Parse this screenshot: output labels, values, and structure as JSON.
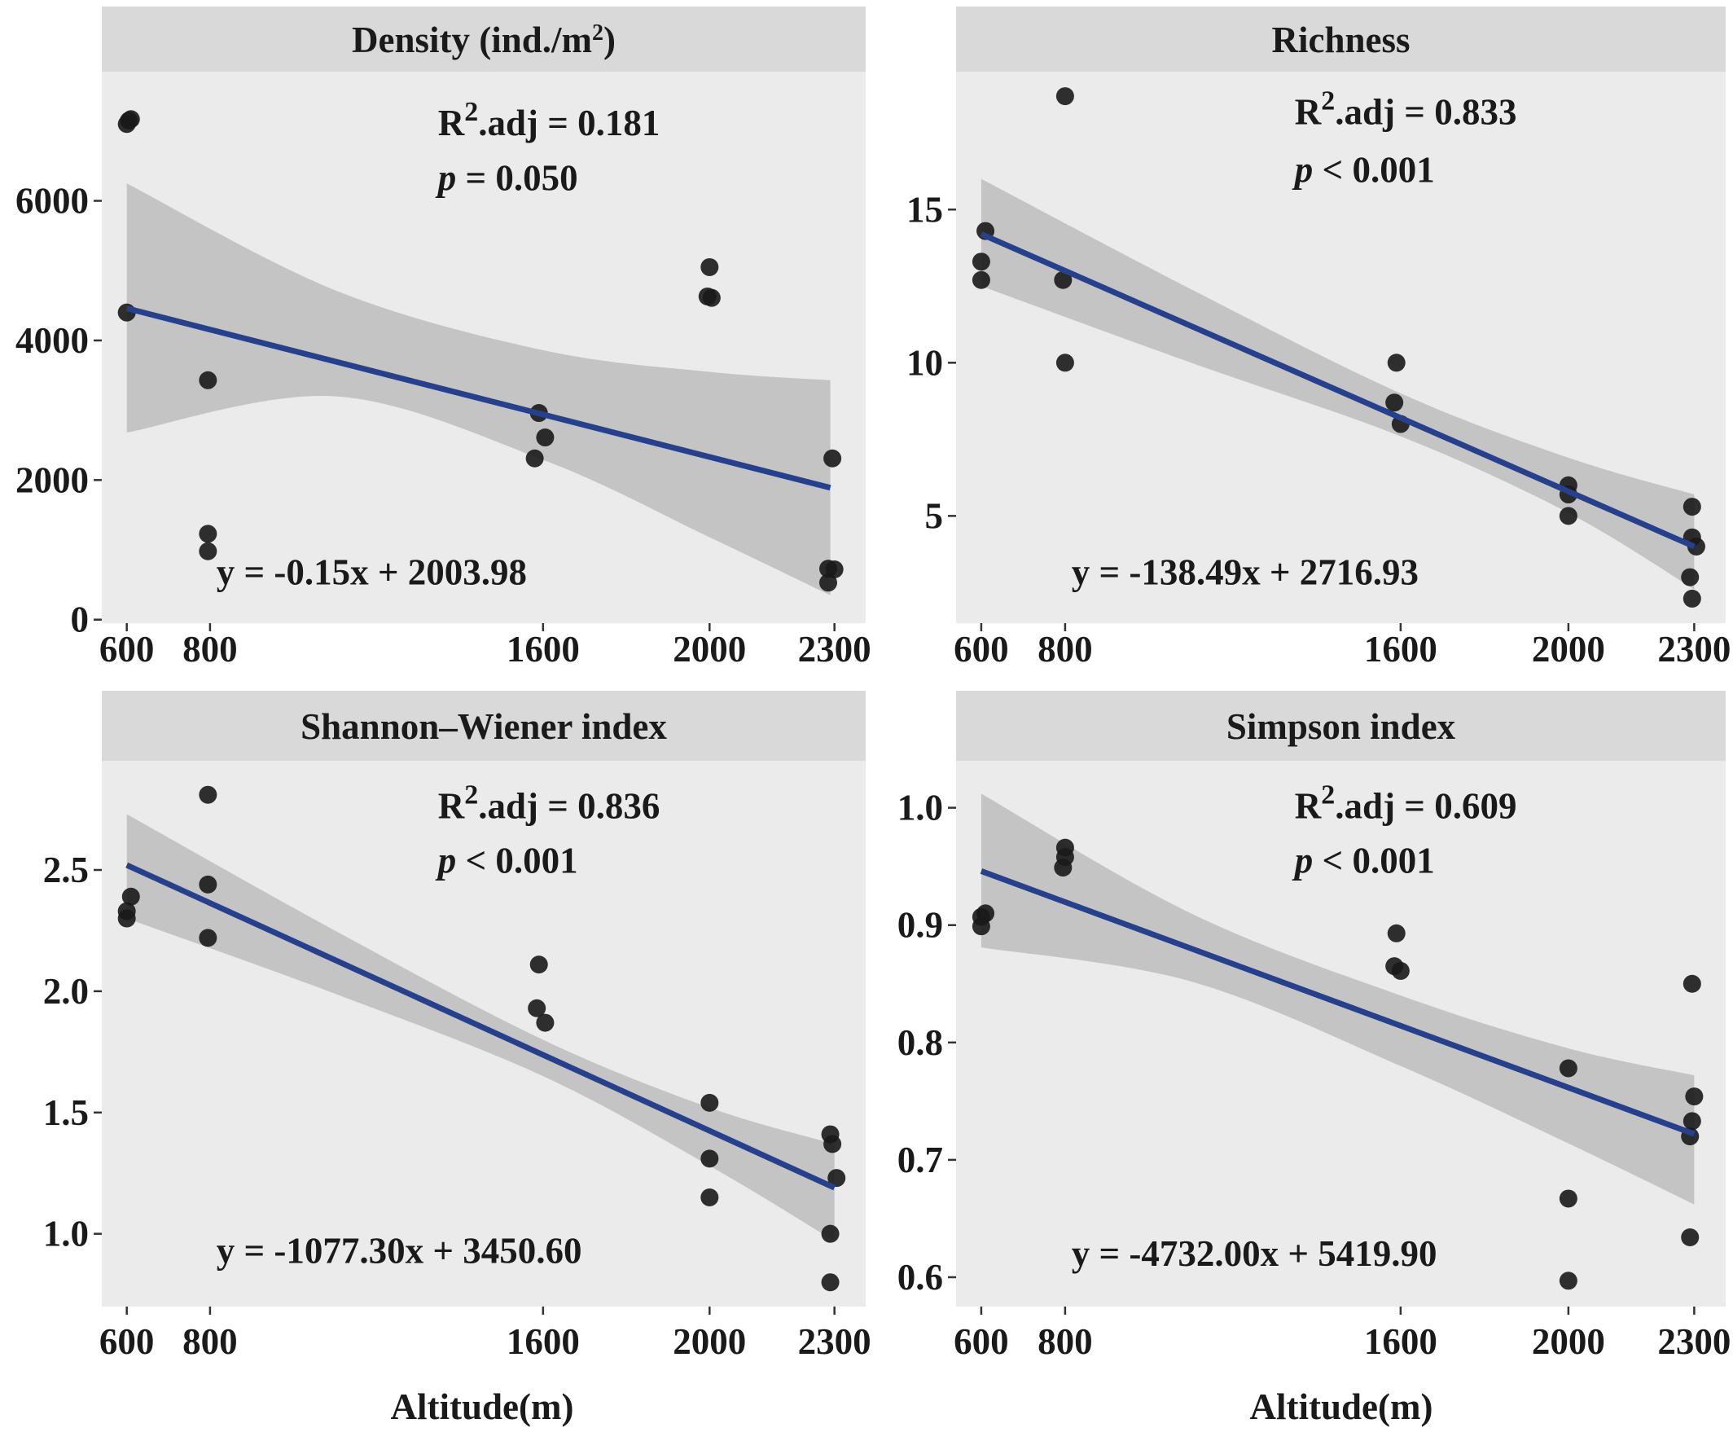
{
  "colors": {
    "panel_bg": "#ebebeb",
    "strip_bg": "#d9d9d9",
    "ribbon": "#bdbdbd",
    "fit_line": "#26408b",
    "points": "#1a1a1a",
    "axis": "#333333"
  },
  "figure": {
    "xlabel": "Altitude(m)"
  },
  "chart_data": [
    {
      "type": "scatter",
      "title_main": "Density  (ind./m",
      "title_sup": "2",
      "title_tail": ")",
      "xlabel": "Altitude(m)",
      "ylabel": "",
      "xlim": [
        540,
        2375
      ],
      "ylim": [
        -50,
        7850
      ],
      "x_ticks": [
        600,
        800,
        1600,
        2000,
        2300
      ],
      "y_ticks": [
        0,
        2000,
        4000,
        6000
      ],
      "y_tick_labels": [
        "0",
        "2000",
        "4000",
        "6000"
      ],
      "points": [
        {
          "x": 600,
          "y": 7100
        },
        {
          "x": 605,
          "y": 7150
        },
        {
          "x": 610,
          "y": 7170
        },
        {
          "x": 600,
          "y": 4400
        },
        {
          "x": 795,
          "y": 3430
        },
        {
          "x": 795,
          "y": 1230
        },
        {
          "x": 795,
          "y": 980
        },
        {
          "x": 1590,
          "y": 2960
        },
        {
          "x": 1580,
          "y": 2310
        },
        {
          "x": 1605,
          "y": 2610
        },
        {
          "x": 2000,
          "y": 5050
        },
        {
          "x": 1995,
          "y": 4630
        },
        {
          "x": 2005,
          "y": 4610
        },
        {
          "x": 2295,
          "y": 2310
        },
        {
          "x": 2285,
          "y": 730
        },
        {
          "x": 2300,
          "y": 720
        },
        {
          "x": 2285,
          "y": 530
        }
      ],
      "fit": {
        "x": [
          600,
          2290
        ],
        "y": [
          4460,
          1890
        ]
      },
      "ribbon": {
        "x": [
          600,
          1100,
          1600,
          2000,
          2290
        ],
        "upper": [
          6250,
          4720,
          3860,
          3550,
          3430
        ],
        "lower": [
          2680,
          3200,
          2290,
          1180,
          350
        ]
      },
      "r2_label": "R",
      "r2_sup": "2",
      "r2_value": ".adj = 0.181",
      "p_symbol": "p",
      "p_value": " = 0.050",
      "equation": "y = -0.15x + 2003.98"
    },
    {
      "type": "scatter",
      "title_main": "Richness",
      "title_sup": "",
      "title_tail": "",
      "xlabel": "Altitude(m)",
      "ylabel": "",
      "xlim": [
        540,
        2375
      ],
      "ylim": [
        1.5,
        19.5
      ],
      "x_ticks": [
        600,
        800,
        1600,
        2000,
        2300
      ],
      "y_ticks": [
        5,
        10,
        15
      ],
      "y_tick_labels": [
        "5",
        "10",
        "15"
      ],
      "points": [
        {
          "x": 800,
          "y": 18.7
        },
        {
          "x": 610,
          "y": 14.3
        },
        {
          "x": 600,
          "y": 13.3
        },
        {
          "x": 600,
          "y": 12.7
        },
        {
          "x": 795,
          "y": 12.7
        },
        {
          "x": 800,
          "y": 10.0
        },
        {
          "x": 1590,
          "y": 10.0
        },
        {
          "x": 1585,
          "y": 8.7
        },
        {
          "x": 1600,
          "y": 8.0
        },
        {
          "x": 2000,
          "y": 6.0
        },
        {
          "x": 2000,
          "y": 5.7
        },
        {
          "x": 2000,
          "y": 5.0
        },
        {
          "x": 2295,
          "y": 5.3
        },
        {
          "x": 2295,
          "y": 4.3
        },
        {
          "x": 2305,
          "y": 4.0
        },
        {
          "x": 2290,
          "y": 3.0
        },
        {
          "x": 2295,
          "y": 2.3
        }
      ],
      "fit": {
        "x": [
          600,
          2300
        ],
        "y": [
          14.2,
          4.0
        ]
      },
      "ribbon": {
        "x": [
          600,
          1100,
          1600,
          2000,
          2300
        ],
        "upper": [
          16.0,
          12.4,
          9.0,
          6.9,
          5.7
        ],
        "lower": [
          12.5,
          10.0,
          7.6,
          5.1,
          2.6
        ]
      },
      "r2_label": "R",
      "r2_sup": "2",
      "r2_value": ".adj = 0.833",
      "p_symbol": "p",
      "p_value": " < 0.001",
      "equation": "y = -138.49x + 2716.93"
    },
    {
      "type": "scatter",
      "title_main": "Shannon–Wiener index",
      "title_sup": "",
      "title_tail": "",
      "xlabel": "Altitude(m)",
      "ylabel": "",
      "xlim": [
        540,
        2375
      ],
      "ylim": [
        0.7,
        2.95
      ],
      "x_ticks": [
        600,
        800,
        1600,
        2000,
        2300
      ],
      "y_ticks": [
        1.0,
        1.5,
        2.0,
        2.5
      ],
      "y_tick_labels": [
        "1.0",
        "1.5",
        "2.0",
        "2.5"
      ],
      "points": [
        {
          "x": 795,
          "y": 2.81
        },
        {
          "x": 610,
          "y": 2.39
        },
        {
          "x": 600,
          "y": 2.33
        },
        {
          "x": 600,
          "y": 2.3
        },
        {
          "x": 795,
          "y": 2.44
        },
        {
          "x": 795,
          "y": 2.22
        },
        {
          "x": 1590,
          "y": 2.11
        },
        {
          "x": 1585,
          "y": 1.93
        },
        {
          "x": 1605,
          "y": 1.87
        },
        {
          "x": 2000,
          "y": 1.54
        },
        {
          "x": 2000,
          "y": 1.31
        },
        {
          "x": 2000,
          "y": 1.15
        },
        {
          "x": 2290,
          "y": 1.41
        },
        {
          "x": 2295,
          "y": 1.37
        },
        {
          "x": 2305,
          "y": 1.23
        },
        {
          "x": 2290,
          "y": 1.0
        },
        {
          "x": 2290,
          "y": 0.8
        }
      ],
      "fit": {
        "x": [
          600,
          2300
        ],
        "y": [
          2.52,
          1.19
        ]
      },
      "ribbon": {
        "x": [
          600,
          1100,
          1600,
          2000,
          2300
        ],
        "upper": [
          2.73,
          2.25,
          1.8,
          1.52,
          1.37
        ],
        "lower": [
          2.3,
          1.99,
          1.65,
          1.28,
          0.97
        ]
      },
      "r2_label": "R",
      "r2_sup": "2",
      "r2_value": ".adj = 0.836",
      "p_symbol": "p",
      "p_value": " < 0.001",
      "equation": "y = -1077.30x + 3450.60"
    },
    {
      "type": "scatter",
      "title_main": "Simpson index",
      "title_sup": "",
      "title_tail": "",
      "xlabel": "Altitude(m)",
      "ylabel": "",
      "xlim": [
        540,
        2375
      ],
      "ylim": [
        0.575,
        1.04
      ],
      "x_ticks": [
        600,
        800,
        1600,
        2000,
        2300
      ],
      "y_ticks": [
        0.6,
        0.7,
        0.8,
        0.9,
        1.0
      ],
      "y_tick_labels": [
        "0.6",
        "0.7",
        "0.8",
        "0.9",
        "1.0"
      ],
      "points": [
        {
          "x": 800,
          "y": 0.966
        },
        {
          "x": 800,
          "y": 0.958
        },
        {
          "x": 795,
          "y": 0.949
        },
        {
          "x": 610,
          "y": 0.91
        },
        {
          "x": 600,
          "y": 0.907
        },
        {
          "x": 600,
          "y": 0.899
        },
        {
          "x": 1590,
          "y": 0.893
        },
        {
          "x": 1585,
          "y": 0.865
        },
        {
          "x": 1600,
          "y": 0.861
        },
        {
          "x": 2000,
          "y": 0.778
        },
        {
          "x": 2000,
          "y": 0.667
        },
        {
          "x": 2000,
          "y": 0.597
        },
        {
          "x": 2295,
          "y": 0.85
        },
        {
          "x": 2300,
          "y": 0.754
        },
        {
          "x": 2295,
          "y": 0.733
        },
        {
          "x": 2290,
          "y": 0.72
        },
        {
          "x": 2290,
          "y": 0.634
        }
      ],
      "fit": {
        "x": [
          600,
          2300
        ],
        "y": [
          0.946,
          0.722
        ]
      },
      "ribbon": {
        "x": [
          600,
          1100,
          1600,
          2000,
          2300
        ],
        "upper": [
          1.012,
          0.91,
          0.84,
          0.795,
          0.772
        ],
        "lower": [
          0.881,
          0.852,
          0.78,
          0.714,
          0.662
        ]
      },
      "r2_label": "R",
      "r2_sup": "2",
      "r2_value": ".adj = 0.609",
      "p_symbol": "p",
      "p_value": " < 0.001",
      "equation": "y = -4732.00x + 5419.90"
    }
  ]
}
